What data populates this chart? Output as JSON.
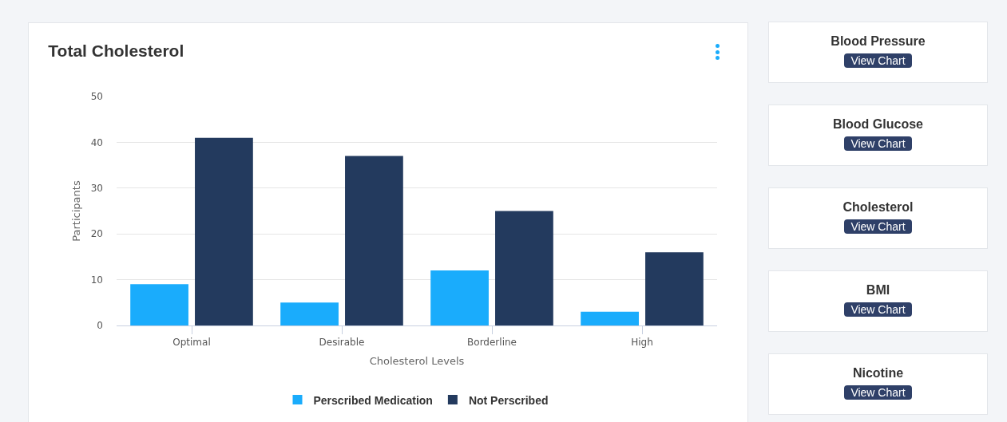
{
  "chart_data": [
    {
      "type": "bar",
      "title": "Total Cholesterol",
      "xlabel": "Cholesterol Levels",
      "ylabel": "Participants",
      "categories": [
        "Optimal",
        "Desirable",
        "Borderline",
        "High"
      ],
      "series": [
        {
          "name": "Perscribed Medication",
          "color": "#1aacfc",
          "values": [
            9,
            5,
            12,
            3
          ]
        },
        {
          "name": "Not Perscribed",
          "color": "#233a5e",
          "values": [
            41,
            37,
            25,
            16
          ]
        }
      ],
      "ylim": [
        0,
        50
      ],
      "yticks": [
        0,
        10,
        20,
        30,
        40,
        50
      ],
      "grid": "y",
      "legend": "bottom"
    },
    {
      "type": "other",
      "annotations": [
        "Blood Pressure",
        "View Chart",
        "Blood Glucose",
        "View Chart",
        "Cholesterol",
        "View Chart",
        "BMI",
        "View Chart",
        "Nicotine",
        "View Chart"
      ]
    }
  ]
}
